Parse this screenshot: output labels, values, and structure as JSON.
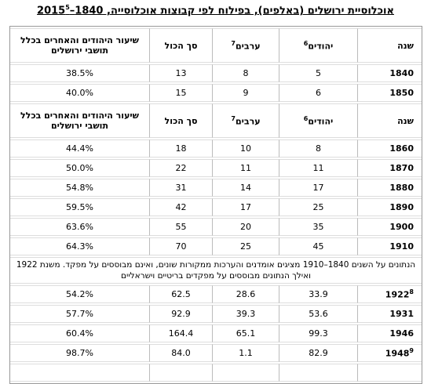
{
  "title": "אוכלוסיית ירושלים (באלפים), בפילוח לפי קבוצות אוכלוסייה, 1840–2015",
  "title_note": "5",
  "table": {
    "header": [
      {
        "text": "שנה"
      },
      {
        "text": "יהודים",
        "note": "6"
      },
      {
        "text": "ערבים",
        "note": "7"
      },
      {
        "text": "סך הכול"
      },
      {
        "text": "שיעור היהודים והאחרים בכלל תושבי ירושלים"
      }
    ],
    "sections": [
      {
        "rows": [
          {
            "year": "1840",
            "cells": [
              "5",
              "8",
              "13",
              "38.5%"
            ]
          },
          {
            "year": "1850",
            "cells": [
              "6",
              "9",
              "15",
              "40.0%"
            ]
          }
        ]
      },
      {
        "repeat_header": true,
        "rows": [
          {
            "year": "1860",
            "cells": [
              "8",
              "10",
              "18",
              "44.4%"
            ]
          },
          {
            "year": "1870",
            "cells": [
              "11",
              "11",
              "22",
              "50.0%"
            ]
          },
          {
            "year": "1880",
            "cells": [
              "17",
              "14",
              "31",
              "54.8%"
            ]
          },
          {
            "year": "1890",
            "cells": [
              "25",
              "17",
              "42",
              "59.5%"
            ]
          },
          {
            "year": "1900",
            "cells": [
              "35",
              "20",
              "55",
              "63.6%"
            ]
          },
          {
            "year": "1910",
            "cells": [
              "45",
              "25",
              "70",
              "64.3%"
            ]
          }
        ]
      },
      {
        "note": "הנתונים על השנים 1840–1910 מציגים אומדנים והערכות ממקורות שונים, ואינם מבוססים על מפקד. משנת 1922 ואילך הנתונים מבוססים על מפקדים בריטיים וישראליים",
        "rows": [
          {
            "year": "1922",
            "year_note": "8",
            "cells": [
              "33.9",
              "28.6",
              "62.5",
              "54.2%"
            ]
          },
          {
            "year": "1931",
            "cells": [
              "53.6",
              "39.3",
              "92.9",
              "57.7%"
            ]
          },
          {
            "year": "1946",
            "cells": [
              "99.3",
              "65.1",
              "164.4",
              "60.4%"
            ]
          },
          {
            "year": "1948",
            "year_note": "9",
            "cells": [
              "82.9",
              "1.1",
              "84.0",
              "98.7%"
            ]
          }
        ]
      }
    ]
  }
}
